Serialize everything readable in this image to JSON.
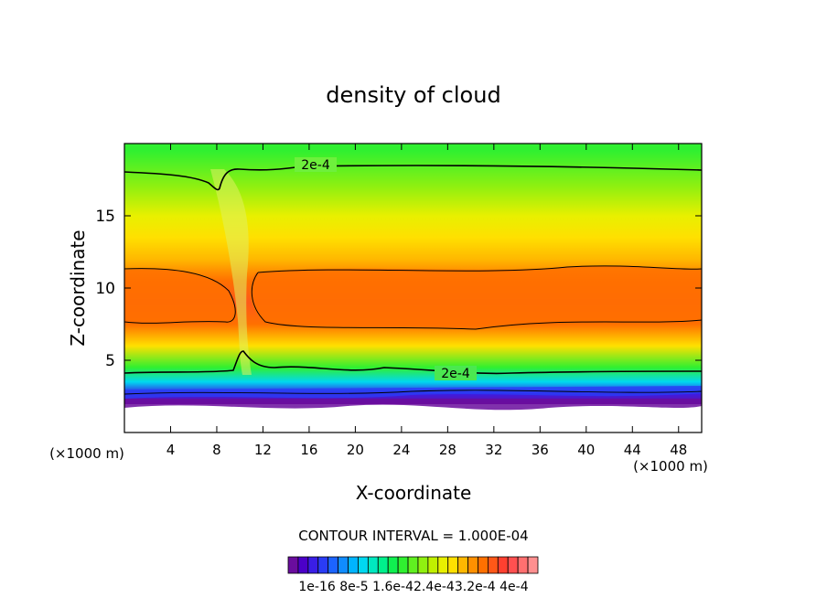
{
  "chart_data": {
    "type": "heatmap",
    "title": "density of cloud",
    "xlabel": "X-coordinate",
    "ylabel": "Z-coordinate",
    "x_unit_left": "(×1000 m)",
    "x_unit_right": "(×1000 m)",
    "xlim": [
      0,
      50
    ],
    "ylim": [
      0,
      20
    ],
    "x_ticks": [
      4,
      8,
      12,
      16,
      20,
      24,
      28,
      32,
      36,
      40,
      44,
      48
    ],
    "y_ticks": [
      5,
      10,
      15
    ],
    "contour_interval_text": "CONTOUR INTERVAL = 1.000E-04",
    "contour_labels": [
      "2e-4",
      "2e-4"
    ],
    "colorbar_labels": [
      "1e-16",
      "8e-5",
      "1.6e-4",
      "2.4e-4",
      "3.2e-4",
      "4e-4"
    ],
    "colorbar_colors": [
      "#6a0d9e",
      "#4b00c8",
      "#3a1ee6",
      "#2a3cf5",
      "#1c64ff",
      "#108cff",
      "#00b4ff",
      "#00d8f0",
      "#00e8c0",
      "#00f08c",
      "#10f050",
      "#30f030",
      "#60f020",
      "#90f010",
      "#c0f000",
      "#e8f000",
      "#ffe000",
      "#ffb800",
      "#ff9000",
      "#ff7000",
      "#ff5818",
      "#ff4030",
      "#ff5050",
      "#ff7070",
      "#ff9090"
    ],
    "vertical_profile": [
      {
        "z": 2.0,
        "value": 1e-16
      },
      {
        "z": 2.7,
        "value": 4e-05
      },
      {
        "z": 3.5,
        "value": 0.00012
      },
      {
        "z": 4.5,
        "value": 0.00019
      },
      {
        "z": 6.0,
        "value": 0.00026
      },
      {
        "z": 7.5,
        "value": 0.00031
      },
      {
        "z": 9.0,
        "value": 0.00033
      },
      {
        "z": 10.5,
        "value": 0.00032
      },
      {
        "z": 12.0,
        "value": 0.00029
      },
      {
        "z": 13.5,
        "value": 0.00027
      },
      {
        "z": 15.0,
        "value": 0.00025
      },
      {
        "z": 17.0,
        "value": 0.000215
      },
      {
        "z": 19.5,
        "value": 0.00018
      }
    ]
  }
}
